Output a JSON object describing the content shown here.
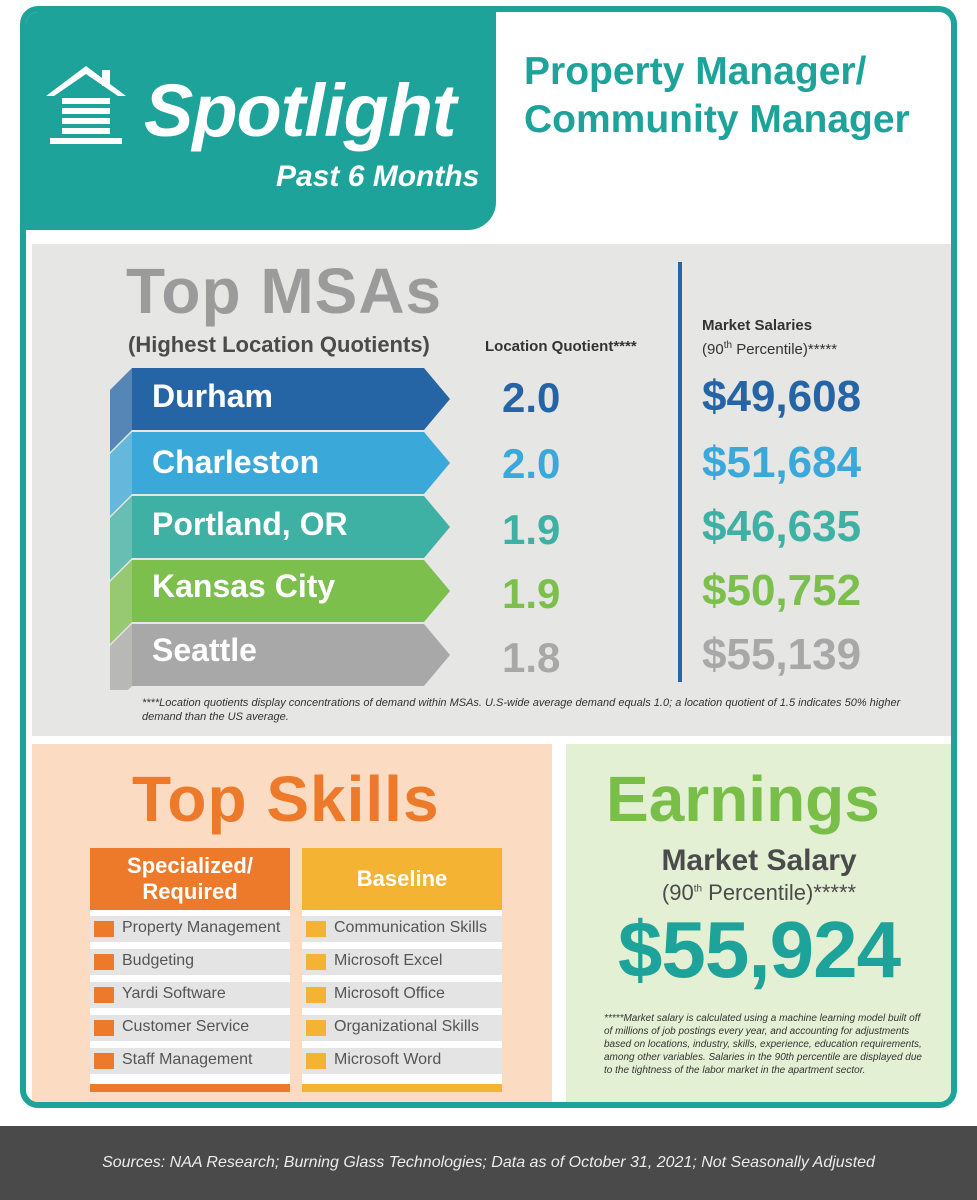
{
  "header": {
    "spotlight": "Spotlight",
    "period": "Past 6 Months",
    "job_title_line1": "Property Manager/",
    "job_title_line2": "Community Manager",
    "logo_icon": "building-icon"
  },
  "msa": {
    "title": "Top MSAs",
    "subtitle": "(Highest Location Quotients)",
    "lq_header": "Location Quotient****",
    "salary_header_line1": "Market Salaries",
    "salary_header_pre": "(90",
    "salary_header_sup": "th",
    "salary_header_post": " Percentile)*****",
    "rows": [
      {
        "city": "Durham",
        "lq": "2.0",
        "salary": "$49,608",
        "color": "#2565a6"
      },
      {
        "city": "Charleston",
        "lq": "2.0",
        "salary": "$51,684",
        "color": "#3aa8d8"
      },
      {
        "city": "Portland, OR",
        "lq": "1.9",
        "salary": "$46,635",
        "color": "#3fb0a4"
      },
      {
        "city": "Kansas City",
        "lq": "1.9",
        "salary": "$50,752",
        "color": "#7cbf4d"
      },
      {
        "city": "Seattle",
        "lq": "1.8",
        "salary": "$55,139",
        "color": "#a8a8a8"
      }
    ],
    "note": "****Location quotients display concentrations of demand within MSAs. U.S-wide average demand equals 1.0; a location quotient of 1.5 indicates 50% higher demand than the US average."
  },
  "skills": {
    "title": "Top Skills",
    "specialized_header": "Specialized/ Required",
    "baseline_header": "Baseline",
    "specialized": [
      "Property Management",
      "Budgeting",
      "Yardi Software",
      "Customer Service",
      "Staff Management"
    ],
    "baseline": [
      "Communication Skills",
      "Microsoft Excel",
      "Microsoft Office",
      "Organizational Skills",
      "Microsoft Word"
    ],
    "specialized_color": "#ec7a2a",
    "baseline_color": "#f5b334"
  },
  "earnings": {
    "title": "Earnings",
    "label": "Market Salary",
    "sub_pre": "(90",
    "sub_sup": "th",
    "sub_post": " Percentile)*****",
    "value": "$55,924",
    "note": "*****Market salary is calculated using a machine learning model built off of millions of job postings every year, and accounting for adjustments based on locations, industry, skills, experience, education requirements, among other variables. Salaries in the 90th percentile are displayed due to the tightness of the labor market in the apartment sector."
  },
  "footer": {
    "sources": "Sources:  NAA Research; Burning Glass Technologies; Data as of October 31, 2021; Not Seasonally Adjusted"
  }
}
